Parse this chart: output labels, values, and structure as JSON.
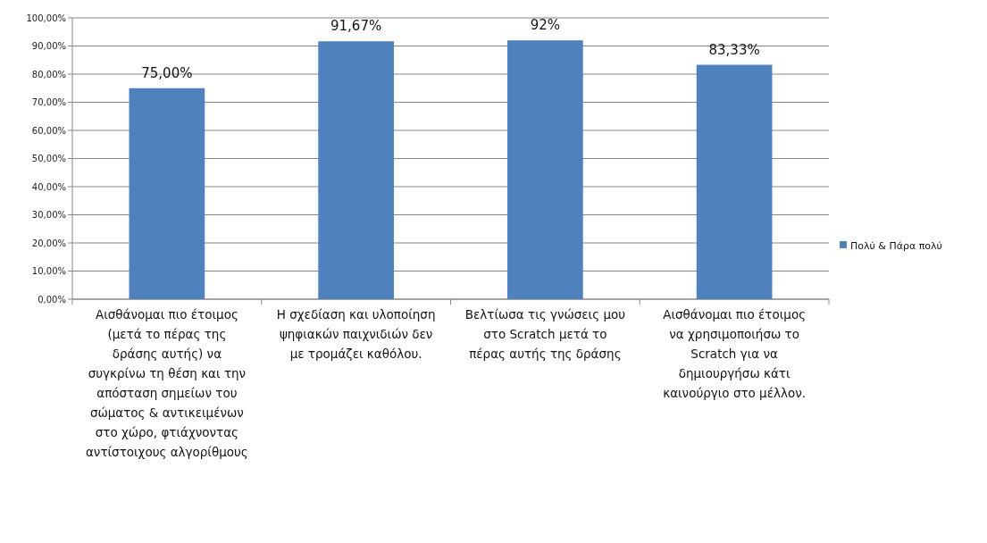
{
  "chart_data": {
    "type": "bar",
    "categories": [
      "Αισθάνομαι πιο έτοιμος (μετά το πέρας της δράσης αυτής) να συγκρίνω τη θέση και την απόσταση σημείων του σώματος & αντικειμένων στο χώρο, φτιάχνοντας αντίστοιχους αλγορίθμους",
      "Η σχεδίαση και υλοποίηση ψηφιακών παιχνιδιών δεν με τρομάζει καθόλου.",
      "Βελτίωσα τις γνώσεις μου στο Scratch μετά το πέρας αυτής της δράσης",
      "Αισθάνομαι πιο έτοιμος να χρησιμοποιήσω το Scratch για να δημιουργήσω κάτι καινούργιο στο μέλλον."
    ],
    "series": [
      {
        "name": "Πολύ & Πάρα πολύ",
        "color": "#4f81bd",
        "values": [
          75,
          91.67,
          92,
          83.33
        ],
        "value_labels": [
          "75,00%",
          "91,67%",
          "92%",
          "83,33%"
        ]
      }
    ],
    "ylim": [
      0,
      100
    ],
    "yticks": [
      {
        "value": 0,
        "label": "0,00%"
      },
      {
        "value": 10,
        "label": "10,00%"
      },
      {
        "value": 20,
        "label": "20,00%"
      },
      {
        "value": 30,
        "label": "30,00%"
      },
      {
        "value": 40,
        "label": "40,00%"
      },
      {
        "value": 50,
        "label": "50,00%"
      },
      {
        "value": 60,
        "label": "60,00%"
      },
      {
        "value": 70,
        "label": "70,00%"
      },
      {
        "value": 80,
        "label": "80,00%"
      },
      {
        "value": 90,
        "label": "90,00%"
      },
      {
        "value": 100,
        "label": "100,00%"
      }
    ],
    "grid": "y",
    "legend": "right"
  }
}
